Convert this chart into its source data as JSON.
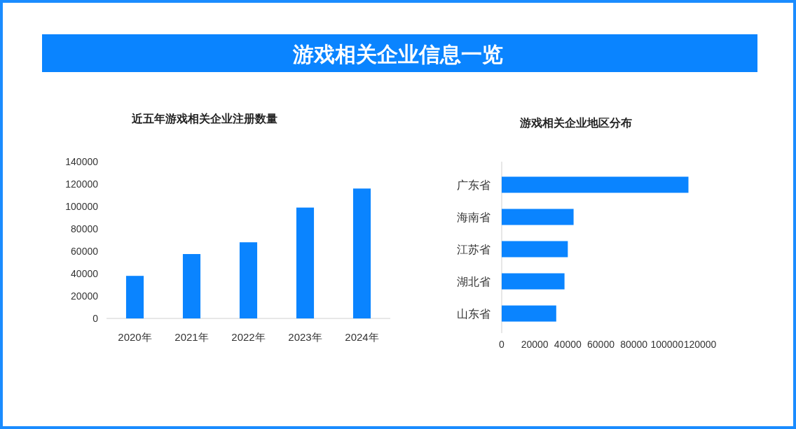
{
  "chart_data": [
    {
      "type": "bar",
      "title": "游戏相关企业信息一览",
      "subtitle": "近五年游戏相关企业注册数量",
      "categories": [
        "2020年",
        "2021年",
        "2022年",
        "2023年",
        "2024年"
      ],
      "values": [
        38000,
        57500,
        68000,
        99000,
        116000
      ],
      "color": "#0a84ff",
      "ylim": [
        0,
        140000
      ],
      "yticks": [
        0,
        20000,
        40000,
        60000,
        80000,
        100000,
        120000,
        140000
      ]
    },
    {
      "type": "bar",
      "orientation": "horizontal",
      "title": "游戏相关企业地区分布",
      "categories": [
        "广东省",
        "海南省",
        "江苏省",
        "湖北省",
        "山东省"
      ],
      "values": [
        113000,
        43500,
        40000,
        38000,
        33000
      ],
      "color": "#0a84ff",
      "xlim": [
        0,
        120000
      ],
      "xticks": [
        0,
        20000,
        40000,
        60000,
        80000,
        100000,
        120000
      ]
    }
  ]
}
